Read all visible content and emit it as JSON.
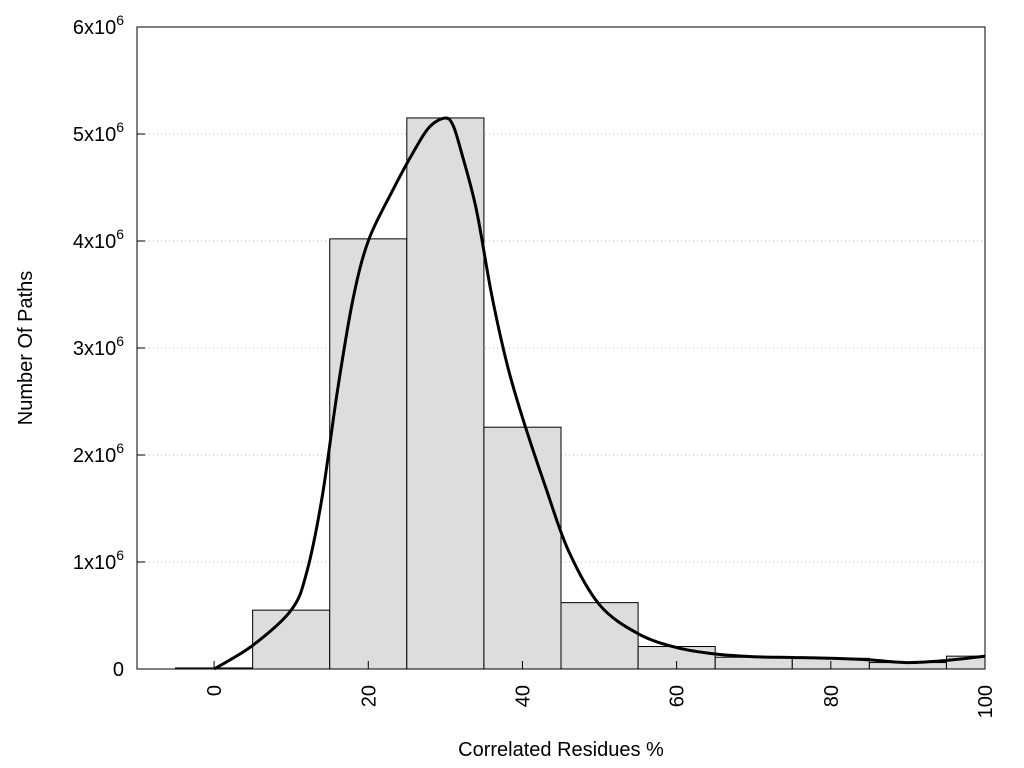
{
  "chart_data": {
    "type": "bar",
    "title": "",
    "xlabel": "Correlated Residues %",
    "ylabel": "Number Of Paths",
    "xlim": [
      -10,
      100
    ],
    "ylim": [
      0,
      6000000
    ],
    "grid": "horizontal dotted",
    "bar_width": 10,
    "bar_color": "#dddddd",
    "x_ticks": [
      0,
      20,
      40,
      60,
      80,
      100
    ],
    "y_ticks": [
      {
        "value": 0,
        "label": "0"
      },
      {
        "value": 1000000,
        "label": "1x10",
        "exp": "6"
      },
      {
        "value": 2000000,
        "label": "2x10",
        "exp": "6"
      },
      {
        "value": 3000000,
        "label": "3x10",
        "exp": "6"
      },
      {
        "value": 4000000,
        "label": "4x10",
        "exp": "6"
      },
      {
        "value": 5000000,
        "label": "5x10",
        "exp": "6"
      },
      {
        "value": 6000000,
        "label": "6x10",
        "exp": "6"
      }
    ],
    "bars": {
      "x": [
        0,
        10,
        20,
        30,
        40,
        50,
        60,
        70,
        80,
        90,
        100
      ],
      "values": [
        10000,
        550000,
        4020000,
        5150000,
        2260000,
        620000,
        210000,
        110000,
        100000,
        60000,
        120000
      ]
    },
    "curve": {
      "x": [
        0,
        5,
        10,
        12,
        14,
        16,
        18,
        20,
        23,
        26,
        28,
        30,
        31,
        32,
        34,
        36,
        38,
        40,
        43,
        46,
        50,
        55,
        60,
        65,
        70,
        75,
        80,
        85,
        90,
        95,
        100
      ],
      "y": [
        0,
        220000,
        550000,
        900000,
        1600000,
        2600000,
        3450000,
        4000000,
        4450000,
        4850000,
        5070000,
        5150000,
        5080000,
        4850000,
        4300000,
        3500000,
        2850000,
        2350000,
        1700000,
        1100000,
        600000,
        330000,
        200000,
        140000,
        115000,
        108000,
        100000,
        85000,
        60000,
        80000,
        120000
      ]
    }
  }
}
